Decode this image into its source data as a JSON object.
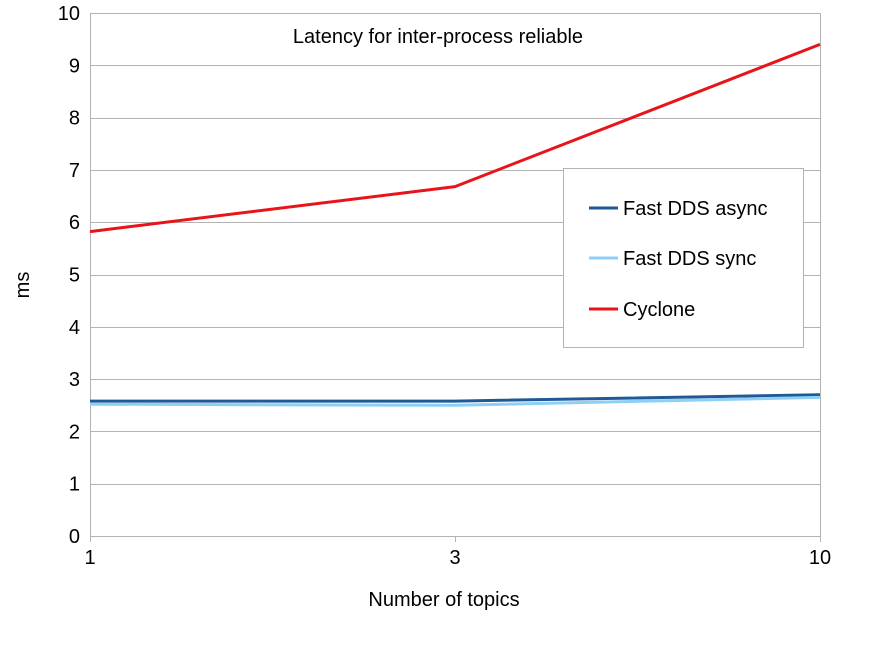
{
  "chart_data": {
    "type": "line",
    "title": "Latency for inter-process reliable",
    "xlabel": "Number of topics",
    "ylabel": "ms",
    "categories": [
      "1",
      "3",
      "10"
    ],
    "ylim": [
      0,
      10
    ],
    "yticks": [
      "0",
      "1",
      "2",
      "3",
      "4",
      "5",
      "6",
      "7",
      "8",
      "9",
      "10"
    ],
    "grid": true,
    "legend_position": "right",
    "series": [
      {
        "name": "Fast DDS async",
        "color": "#1f5a96",
        "values": [
          2.58,
          2.58,
          2.7
        ]
      },
      {
        "name": "Fast DDS sync",
        "color": "#8ecff5",
        "values": [
          2.52,
          2.5,
          2.65
        ]
      },
      {
        "name": "Cyclone",
        "color": "#e8141a",
        "values": [
          5.82,
          6.68,
          9.4
        ]
      }
    ]
  }
}
